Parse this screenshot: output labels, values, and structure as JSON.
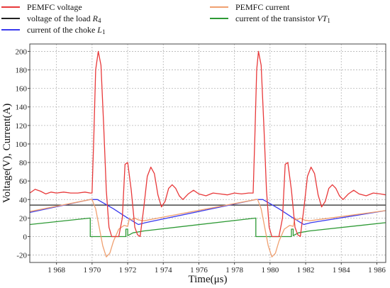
{
  "chart_data": {
    "type": "line",
    "xlabel": "Time(μs)",
    "ylabel": "Voltage(V), Current(A)",
    "xlim": [
      1966.5,
      1986.5
    ],
    "ylim": [
      -28,
      208
    ],
    "x_ticks": [
      1968,
      1970,
      1972,
      1974,
      1976,
      1978,
      1980,
      1982,
      1984,
      1986
    ],
    "x_tick_labels": [
      "1 968",
      "1 970",
      "1 972",
      "1 974",
      "1 976",
      "1 978",
      "1 980",
      "1 982",
      "1 984",
      "1 986"
    ],
    "y_ticks": [
      -20,
      0,
      20,
      40,
      60,
      80,
      100,
      120,
      140,
      160,
      180,
      200
    ],
    "y_tick_labels": [
      "-20",
      "0",
      "20",
      "40",
      "60",
      "80",
      "100",
      "120",
      "140",
      "160",
      "180",
      "200"
    ],
    "grid": true,
    "legend_position": "top",
    "series": [
      {
        "name": "PEMFC voltage",
        "color": "#e8393a",
        "x": [
          1966.5,
          1966.8,
          1967.1,
          1967.4,
          1967.7,
          1968.0,
          1968.4,
          1968.8,
          1969.2,
          1969.6,
          1969.9,
          1970.0,
          1970.1,
          1970.2,
          1970.35,
          1970.5,
          1970.65,
          1970.8,
          1970.95,
          1971.1,
          1971.3,
          1971.5,
          1971.7,
          1971.85,
          1972.0,
          1972.2,
          1972.4,
          1972.55,
          1972.7,
          1972.9,
          1973.1,
          1973.3,
          1973.5,
          1973.7,
          1973.9,
          1974.1,
          1974.3,
          1974.5,
          1974.7,
          1974.9,
          1975.1,
          1975.4,
          1975.7,
          1976.0,
          1976.4,
          1976.8,
          1977.2,
          1977.6,
          1978.0,
          1978.4,
          1978.8,
          1979.05,
          1979.15,
          1979.25,
          1979.35,
          1979.5,
          1979.65,
          1979.8,
          1979.95,
          1980.1,
          1980.3,
          1980.5,
          1980.7,
          1980.85,
          1981.0,
          1981.2,
          1981.4,
          1981.55,
          1981.7,
          1981.9,
          1982.1,
          1982.3,
          1982.5,
          1982.7,
          1982.9,
          1983.1,
          1983.3,
          1983.5,
          1983.7,
          1983.9,
          1984.1,
          1984.4,
          1984.7,
          1985.0,
          1985.4,
          1985.8,
          1986.2,
          1986.5
        ],
        "y": [
          47,
          51,
          49,
          46,
          48,
          47,
          48,
          47,
          47,
          48,
          47,
          47,
          110,
          180,
          200,
          185,
          120,
          50,
          10,
          0,
          0,
          0,
          20,
          78,
          80,
          50,
          10,
          2,
          0,
          30,
          65,
          75,
          68,
          45,
          32,
          38,
          52,
          56,
          52,
          44,
          40,
          46,
          50,
          46,
          44,
          47,
          46,
          45,
          47,
          46,
          47,
          47,
          110,
          180,
          200,
          185,
          120,
          50,
          10,
          0,
          0,
          0,
          20,
          78,
          80,
          50,
          10,
          2,
          0,
          30,
          65,
          75,
          68,
          45,
          32,
          38,
          52,
          56,
          52,
          44,
          40,
          46,
          50,
          46,
          44,
          47,
          46,
          45
        ]
      },
      {
        "name": "PEMFC current",
        "color": "#f0a070",
        "x": [
          1966.5,
          1969.9,
          1970.0,
          1970.2,
          1970.4,
          1970.6,
          1970.8,
          1971.0,
          1971.2,
          1971.5,
          1971.8,
          1972.0,
          1972.1,
          1972.2,
          1972.4,
          1972.6,
          1972.9,
          1979.2,
          1979.3,
          1979.5,
          1979.7,
          1979.9,
          1980.1,
          1980.3,
          1980.5,
          1980.8,
          1981.1,
          1981.3,
          1981.4,
          1981.5,
          1981.7,
          1981.9,
          1982.2,
          1986.5
        ],
        "y": [
          27,
          40,
          40,
          30,
          10,
          -10,
          -22,
          -18,
          -5,
          8,
          12,
          11,
          20,
          18,
          20,
          18,
          17,
          40,
          40,
          30,
          10,
          -10,
          -22,
          -18,
          -5,
          8,
          12,
          11,
          20,
          18,
          20,
          18,
          17,
          28
        ]
      },
      {
        "name": "voltage of the load R₄",
        "color": "#222222",
        "x": [
          1966.5,
          1986.5
        ],
        "y": [
          34,
          34
        ]
      },
      {
        "name": "current of the transistor VT₁",
        "color": "#2e9a35",
        "x": [
          1966.5,
          1969.9,
          1969.9,
          1971.9,
          1971.9,
          1972.0,
          1972.0,
          1972.3,
          1972.9,
          1979.2,
          1979.2,
          1981.2,
          1981.2,
          1981.3,
          1981.3,
          1981.6,
          1982.2,
          1986.5
        ],
        "y": [
          13,
          20,
          0,
          0,
          8,
          8,
          1,
          4,
          6,
          20,
          0,
          0,
          8,
          8,
          1,
          4,
          6,
          15
        ]
      },
      {
        "name": "current of the choke L₁",
        "color": "#3a3aee",
        "x": [
          1966.5,
          1969.9,
          1970.3,
          1971.2,
          1972.0,
          1972.6,
          1973.0,
          1979.2,
          1979.6,
          1980.5,
          1981.3,
          1981.9,
          1982.3,
          1986.5
        ],
        "y": [
          26,
          40,
          40,
          30,
          20,
          13,
          15,
          40,
          40,
          30,
          20,
          13,
          15,
          28
        ]
      }
    ],
    "legend": [
      {
        "label": "PEMFC voltage",
        "color": "#e8393a"
      },
      {
        "label": "PEMFC current",
        "color": "#f0a070"
      },
      {
        "label": "voltage of the load ",
        "label_math": "R",
        "label_sub": "4",
        "color": "#222222"
      },
      {
        "label": "current of the transistor ",
        "label_math": "VT",
        "label_sub": "1",
        "color": "#2e9a35"
      },
      {
        "label": "current of the choke ",
        "label_math": "L",
        "label_sub": "1",
        "color": "#3a3aee"
      }
    ]
  }
}
